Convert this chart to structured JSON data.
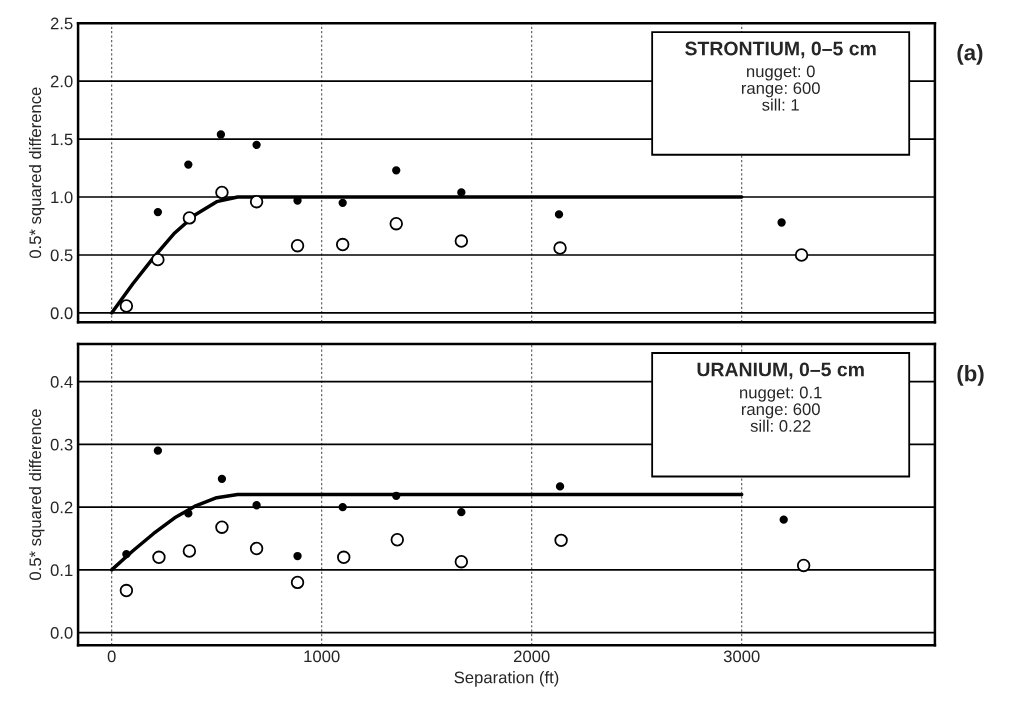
{
  "chart_data": [
    {
      "type": "scatter",
      "title": "STRONTIUM, 0–5 cm",
      "ylabel": "0.5* squared difference",
      "annotations": [
        "nugget: 0",
        "range: 600",
        "sill: 1",
        "(a)"
      ],
      "series": [
        {
          "color": "#000000",
          "marker": "circle",
          "x": [
            220,
            365,
            520,
            690,
            885,
            1100,
            1355,
            1665,
            2130,
            3190
          ],
          "values": [
            0.87,
            1.28,
            1.54,
            1.45,
            0.97,
            0.95,
            1.23,
            1.04,
            0.85,
            0.78
          ]
        },
        {
          "color": "#ffffff",
          "marker": "circle",
          "x": [
            70,
            220,
            370,
            525,
            690,
            885,
            1100,
            1355,
            1665,
            2135,
            3285
          ],
          "values": [
            0.06,
            0.46,
            0.82,
            1.04,
            0.96,
            0.58,
            0.59,
            0.77,
            0.62,
            0.56,
            0.5
          ]
        },
        {
          "type": "line",
          "color": "#000000",
          "marker": "none",
          "line_style": "solid",
          "x": [
            0,
            100,
            200,
            300,
            400,
            500,
            600,
            3000
          ],
          "values": [
            0,
            0.25,
            0.48,
            0.69,
            0.85,
            0.96,
            1.0,
            1.0
          ]
        }
      ],
      "xlim": [
        -160,
        3920
      ],
      "xticks": [
        0,
        1000,
        2000,
        3000
      ],
      "ylim": [
        -0.08,
        2.5
      ],
      "yticks": [
        {
          "value": 0,
          "label": "0.0"
        },
        {
          "value": 0.5,
          "label": "0.5"
        },
        {
          "value": 1,
          "label": "1.0"
        },
        {
          "value": 1.5,
          "label": "1.5"
        },
        {
          "value": 2,
          "label": "2.0"
        },
        {
          "value": 2.5,
          "label": "2.5"
        }
      ],
      "tick_labels": "y",
      "grid": true,
      "legend": false
    },
    {
      "type": "scatter",
      "title": "URANIUM, 0–5 cm",
      "xlabel": "Separation (ft)",
      "ylabel": "0.5* squared difference",
      "annotations": [
        "nugget: 0.1",
        "range: 600",
        "sill: 0.22",
        "(b)"
      ],
      "series": [
        {
          "color": "#000000",
          "marker": "circle",
          "x": [
            70,
            220,
            365,
            525,
            690,
            885,
            1100,
            1355,
            1665,
            2135,
            3200
          ],
          "values": [
            0.125,
            0.29,
            0.19,
            0.245,
            0.203,
            0.122,
            0.2,
            0.218,
            0.192,
            0.233,
            0.18
          ]
        },
        {
          "color": "#ffffff",
          "marker": "circle",
          "x": [
            70,
            225,
            370,
            525,
            690,
            885,
            1105,
            1360,
            1665,
            2140,
            3295
          ],
          "values": [
            0.067,
            0.12,
            0.13,
            0.168,
            0.134,
            0.08,
            0.12,
            0.148,
            0.113,
            0.147,
            0.107
          ]
        },
        {
          "type": "line",
          "color": "#000000",
          "marker": "none",
          "line_style": "solid",
          "x": [
            0,
            100,
            200,
            300,
            400,
            500,
            600,
            3000
          ],
          "values": [
            0.1,
            0.13,
            0.158,
            0.183,
            0.202,
            0.215,
            0.22,
            0.22
          ]
        }
      ],
      "xlim": [
        -160,
        3920
      ],
      "xticks": [
        0,
        1000,
        2000,
        3000
      ],
      "ylim": [
        -0.02,
        0.46
      ],
      "yticks": [
        {
          "value": 0,
          "label": "0.0"
        },
        {
          "value": 0.1,
          "label": "0.1"
        },
        {
          "value": 0.2,
          "label": "0.2"
        },
        {
          "value": 0.3,
          "label": "0.3"
        },
        {
          "value": 0.4,
          "label": "0.4"
        }
      ],
      "grid": true,
      "legend": false
    }
  ]
}
